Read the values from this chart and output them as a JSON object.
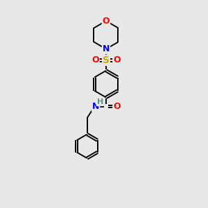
{
  "background_color": "#e8e8e8",
  "atom_colors": {
    "C": "#000000",
    "N": "#0000ff",
    "O": "#ff0000",
    "S": "#ccaa00",
    "H": "#4a9a9a"
  },
  "figsize": [
    3.0,
    3.0
  ],
  "dpi": 100,
  "lw": 1.4,
  "fs": 9,
  "fs_small": 8
}
